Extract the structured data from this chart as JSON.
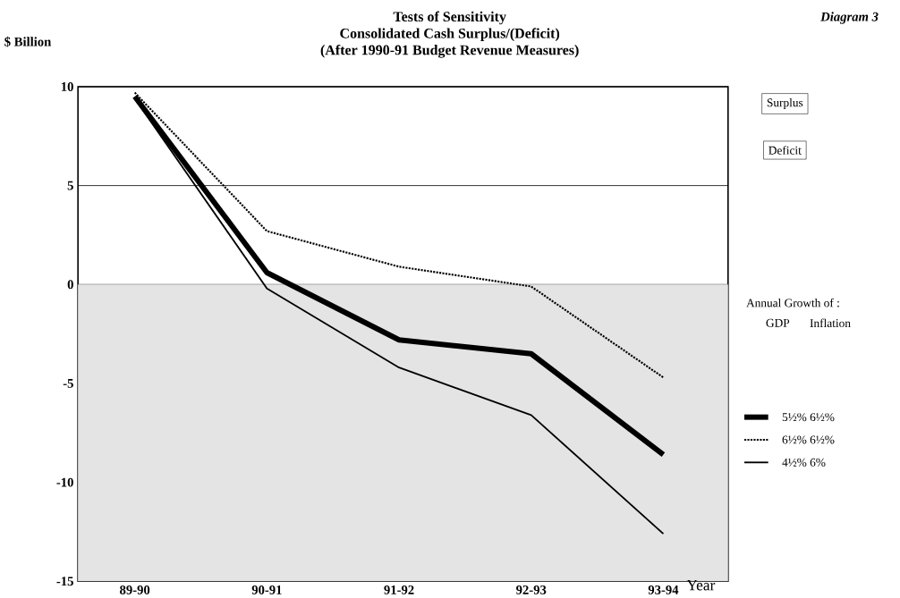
{
  "chart_data": {
    "type": "line",
    "title": "Tests of Sensitivity",
    "subtitle": "Consolidated Cash Surplus/(Deficit)",
    "annotations": [
      "(After 1990-91 Budget Revenue Measures)",
      "Diagram 3",
      "Surplus",
      "Deficit",
      "GDP",
      "Inflation"
    ],
    "ylabel": "$ Billion",
    "xlabel": "Year",
    "legend_title": "Annual Growth of :",
    "categories": [
      "89-90",
      "90-91",
      "91-92",
      "92-93",
      "93-94"
    ],
    "series": [
      {
        "name": "5½%  6½%",
        "color": "#000000",
        "line_style": "solid",
        "values": [
          9.5,
          0.6,
          -2.8,
          -3.5,
          -8.6
        ]
      },
      {
        "name": "6½%  6½%",
        "color": "#000000",
        "line_style": "dotted",
        "values": [
          9.7,
          2.7,
          0.9,
          -0.1,
          -4.7
        ]
      },
      {
        "name": "4½%  6%",
        "color": "#000000",
        "line_style": "solid",
        "values": [
          9.4,
          -0.2,
          -4.2,
          -6.6,
          -12.6
        ]
      }
    ],
    "ylim": [
      -15,
      10
    ],
    "yticks": [
      -15,
      -10,
      -5,
      0,
      5,
      10
    ],
    "grid": "y",
    "bands": [
      {
        "axis": "y",
        "from": 0,
        "to": -15,
        "color": "#e4e4e4"
      }
    ],
    "legend": "right",
    "marker": "none"
  }
}
